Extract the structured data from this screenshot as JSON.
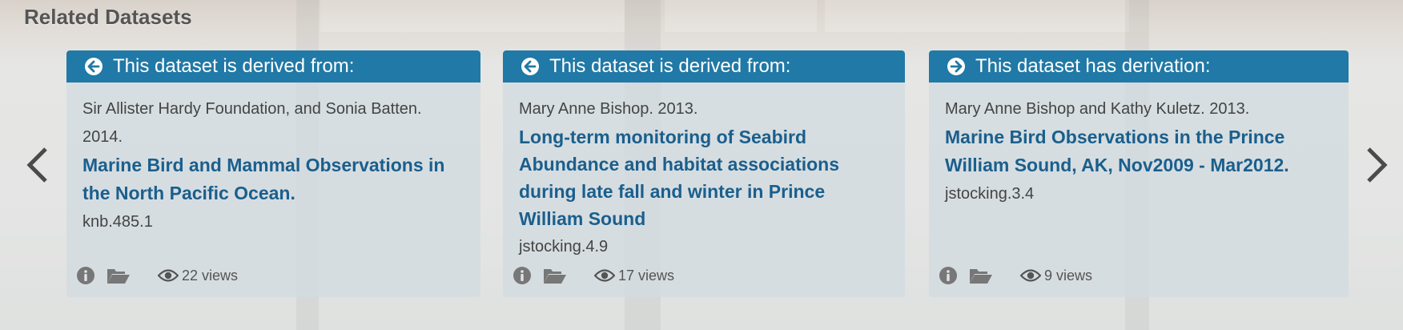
{
  "section": {
    "title": "Related Datasets"
  },
  "nav": {
    "prev_icon": "chevron-left-icon",
    "next_icon": "chevron-right-icon"
  },
  "colors": {
    "header": "#2079a6",
    "title_link": "#1a5f8d",
    "card_bg": "#d2dbe0"
  },
  "cards": [
    {
      "header_icon": "arrow-circle-left-icon",
      "header": "This dataset is derived from:",
      "authors": "Sir Allister Hardy Foundation, and Sonia Batten. 2014.",
      "title": "Marine Bird and Mammal Observations in the North Pacific Ocean.",
      "id": "knb.485.1",
      "views": "22 views"
    },
    {
      "header_icon": "arrow-circle-left-icon",
      "header": "This dataset is derived from:",
      "authors": "Mary Anne Bishop. 2013.",
      "title": "Long-term monitoring of Seabird Abundance and habitat associations during late fall and winter in Prince William Sound",
      "id": "jstocking.4.9",
      "views": "17 views"
    },
    {
      "header_icon": "arrow-circle-right-icon",
      "header": "This dataset has derivation:",
      "authors": "Mary Anne Bishop and Kathy Kuletz. 2013.",
      "title": "Marine Bird Observations in the Prince William Sound, AK, Nov2009 - Mar2012.",
      "id": "jstocking.3.4",
      "views": "9 views"
    }
  ]
}
